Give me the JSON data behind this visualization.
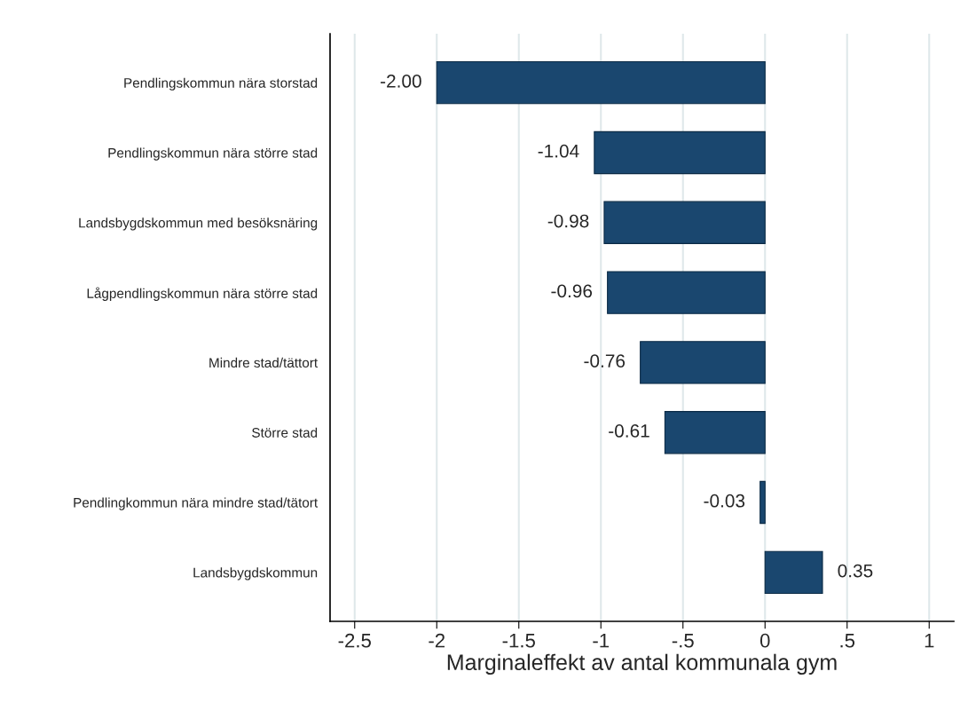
{
  "chart_data": {
    "type": "bar",
    "orientation": "horizontal",
    "xlabel": "Marginaleffekt av antal kommunala gym",
    "categories": [
      "Pendlingskommun nära storstad",
      "Pendlingskommun nära större stad",
      "Landsbygdskommun med besöksnäring",
      "Lågpendlingskommun nära större stad",
      "Mindre stad/tättort",
      "Större stad",
      "Pendlingkommun nära mindre stad/tätort",
      "Landsbygdskommun"
    ],
    "values": [
      -2.0,
      -1.04,
      -0.98,
      -0.96,
      -0.76,
      -0.61,
      -0.03,
      0.35
    ],
    "value_labels": [
      "-2.00",
      "-1.04",
      "-0.98",
      "-0.96",
      "-0.76",
      "-0.61",
      "-0.03",
      "0.35"
    ],
    "color": "#1a476f",
    "xlim": [
      -2.65,
      1.15
    ],
    "xticks": [
      -2.5,
      -2,
      -1.5,
      -1,
      {
        "value": -0.5,
        "label": "-.5"
      },
      0,
      {
        "value": 0.5,
        "label": ".5"
      },
      1
    ],
    "grid": "x"
  }
}
